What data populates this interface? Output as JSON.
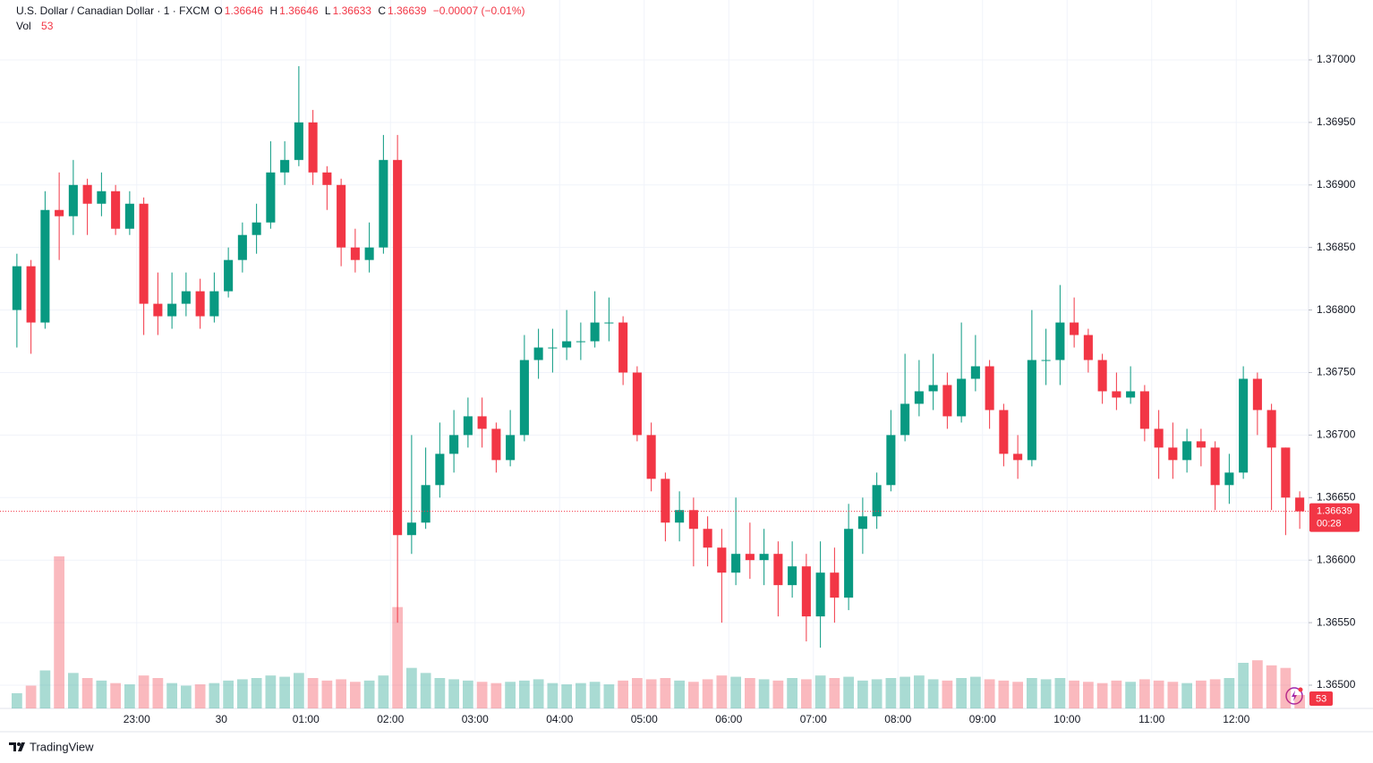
{
  "chart_data": {
    "type": "candlestick",
    "legend": {
      "title": "U.S. Dollar / Canadian Dollar · 1 · FXCM",
      "items": [
        {
          "label": "O",
          "value": "1.36646"
        },
        {
          "label": "H",
          "value": "1.36646"
        },
        {
          "label": "L",
          "value": "1.36633"
        },
        {
          "label": "C",
          "value": "1.36639"
        }
      ],
      "change": "−0.00007 (−0.01%)"
    },
    "up_color": "#089981",
    "down_color": "#f23645",
    "categories": [
      "21:30",
      "21:40",
      "21:50",
      "22:00",
      "22:10",
      "22:20",
      "22:30",
      "22:40",
      "22:50",
      "23:00",
      "23:10",
      "23:20",
      "23:30",
      "23:40",
      "23:50",
      "00:00",
      "00:10",
      "00:20",
      "00:30",
      "00:40",
      "00:50",
      "01:00",
      "01:10",
      "01:20",
      "01:30",
      "01:40",
      "01:50",
      "02:00",
      "02:10",
      "02:20",
      "02:30",
      "02:40",
      "02:50",
      "03:00",
      "03:10",
      "03:20",
      "03:30",
      "03:40",
      "03:50",
      "04:00",
      "04:10",
      "04:20",
      "04:30",
      "04:40",
      "04:50",
      "05:00",
      "05:10",
      "05:20",
      "05:30",
      "05:40",
      "05:50",
      "06:00",
      "06:10",
      "06:20",
      "06:30",
      "06:40",
      "06:50",
      "07:00",
      "07:10",
      "07:20",
      "07:30",
      "07:40",
      "07:50",
      "08:00",
      "08:10",
      "08:20",
      "08:30",
      "08:40",
      "08:50",
      "09:00",
      "09:10",
      "09:20",
      "09:30",
      "09:40",
      "09:50",
      "10:00",
      "10:10",
      "10:20",
      "10:30",
      "10:40",
      "10:50",
      "11:00",
      "11:10",
      "11:20",
      "11:30",
      "11:40",
      "11:50",
      "12:00",
      "12:10",
      "12:20",
      "12:30",
      "12:40"
    ],
    "open": [
      1.368,
      1.36835,
      1.3679,
      1.3688,
      1.36875,
      1.369,
      1.36885,
      1.36895,
      1.36865,
      1.36885,
      1.36805,
      1.36795,
      1.36805,
      1.36815,
      1.36795,
      1.36815,
      1.3684,
      1.3686,
      1.3687,
      1.3691,
      1.3692,
      1.3695,
      1.3691,
      1.369,
      1.3685,
      1.3684,
      1.3685,
      1.3692,
      1.3662,
      1.3663,
      1.3666,
      1.36685,
      1.367,
      1.36715,
      1.36705,
      1.3668,
      1.367,
      1.3676,
      1.3677,
      1.3677,
      1.36775,
      1.36775,
      1.3679,
      1.3679,
      1.3675,
      1.367,
      1.36665,
      1.3663,
      1.3664,
      1.36625,
      1.3661,
      1.3659,
      1.36605,
      1.366,
      1.36605,
      1.3658,
      1.36595,
      1.36555,
      1.3659,
      1.3657,
      1.36625,
      1.36635,
      1.3666,
      1.367,
      1.36725,
      1.36735,
      1.3674,
      1.36715,
      1.36745,
      1.36755,
      1.3672,
      1.36685,
      1.3668,
      1.3676,
      1.3676,
      1.3679,
      1.3678,
      1.3676,
      1.36735,
      1.3673,
      1.36735,
      1.36705,
      1.3669,
      1.3668,
      1.36695,
      1.3669,
      1.3666,
      1.3667,
      1.36745,
      1.3672,
      1.3669,
      1.3665
    ],
    "high": [
      1.36845,
      1.3684,
      1.36895,
      1.3691,
      1.3692,
      1.36905,
      1.3691,
      1.369,
      1.36895,
      1.3689,
      1.3683,
      1.3683,
      1.3683,
      1.36825,
      1.3683,
      1.3685,
      1.3687,
      1.36885,
      1.36935,
      1.36935,
      1.36995,
      1.3696,
      1.36915,
      1.36905,
      1.36865,
      1.3687,
      1.3694,
      1.3694,
      1.367,
      1.3669,
      1.3671,
      1.3672,
      1.3673,
      1.3673,
      1.3671,
      1.3672,
      1.3678,
      1.36785,
      1.36785,
      1.368,
      1.3679,
      1.36815,
      1.3681,
      1.36795,
      1.36755,
      1.3671,
      1.3667,
      1.36655,
      1.3665,
      1.36635,
      1.36625,
      1.3665,
      1.3663,
      1.36625,
      1.36615,
      1.36615,
      1.36605,
      1.36615,
      1.3661,
      1.36645,
      1.3665,
      1.3667,
      1.3672,
      1.36765,
      1.3676,
      1.36765,
      1.3675,
      1.3679,
      1.3678,
      1.3676,
      1.36725,
      1.367,
      1.368,
      1.36785,
      1.3682,
      1.3681,
      1.36785,
      1.36765,
      1.3675,
      1.36755,
      1.3674,
      1.3672,
      1.3671,
      1.36705,
      1.36705,
      1.36695,
      1.36685,
      1.36755,
      1.3675,
      1.36725,
      1.3669,
      1.36655
    ],
    "low": [
      1.3677,
      1.36765,
      1.36785,
      1.3684,
      1.3686,
      1.3686,
      1.36875,
      1.3686,
      1.3686,
      1.3678,
      1.3678,
      1.36785,
      1.36795,
      1.36785,
      1.3679,
      1.3681,
      1.3683,
      1.36845,
      1.36865,
      1.369,
      1.36915,
      1.369,
      1.3688,
      1.36835,
      1.3683,
      1.3683,
      1.36845,
      1.3655,
      1.36605,
      1.36625,
      1.3665,
      1.3667,
      1.3669,
      1.3669,
      1.3667,
      1.36675,
      1.36695,
      1.36745,
      1.3675,
      1.3676,
      1.3676,
      1.3677,
      1.36775,
      1.3674,
      1.36695,
      1.36655,
      1.36615,
      1.36615,
      1.36595,
      1.36595,
      1.3655,
      1.3658,
      1.36585,
      1.3658,
      1.36555,
      1.3657,
      1.36535,
      1.3653,
      1.3655,
      1.3656,
      1.36605,
      1.36625,
      1.36655,
      1.36695,
      1.36715,
      1.3672,
      1.36705,
      1.3671,
      1.36735,
      1.36705,
      1.36675,
      1.36665,
      1.36675,
      1.3674,
      1.3674,
      1.3677,
      1.3675,
      1.36725,
      1.3672,
      1.36725,
      1.36695,
      1.36665,
      1.36665,
      1.3667,
      1.36675,
      1.3664,
      1.36645,
      1.36665,
      1.367,
      1.3664,
      1.3662,
      1.36625
    ],
    "close": [
      1.36835,
      1.3679,
      1.3688,
      1.36875,
      1.369,
      1.36885,
      1.36895,
      1.36865,
      1.36885,
      1.36805,
      1.36795,
      1.36805,
      1.36815,
      1.36795,
      1.36815,
      1.3684,
      1.3686,
      1.3687,
      1.3691,
      1.3692,
      1.3695,
      1.3691,
      1.369,
      1.3685,
      1.3684,
      1.3685,
      1.3692,
      1.3662,
      1.3663,
      1.3666,
      1.36685,
      1.367,
      1.36715,
      1.36705,
      1.3668,
      1.367,
      1.3676,
      1.3677,
      1.3677,
      1.36775,
      1.36775,
      1.3679,
      1.3679,
      1.3675,
      1.367,
      1.36665,
      1.3663,
      1.3664,
      1.36625,
      1.3661,
      1.3659,
      1.36605,
      1.366,
      1.36605,
      1.3658,
      1.36595,
      1.36555,
      1.3659,
      1.3657,
      1.36625,
      1.36635,
      1.3666,
      1.367,
      1.36725,
      1.36735,
      1.3674,
      1.36715,
      1.36745,
      1.36755,
      1.3672,
      1.36685,
      1.3668,
      1.3676,
      1.3676,
      1.3679,
      1.3678,
      1.3676,
      1.36735,
      1.3673,
      1.36735,
      1.36705,
      1.3669,
      1.3668,
      1.36695,
      1.3669,
      1.3666,
      1.3667,
      1.36745,
      1.3672,
      1.3669,
      1.3665,
      1.36639
    ],
    "volume": {
      "name": "Vol",
      "values": [
        60,
        90,
        150,
        600,
        140,
        120,
        110,
        100,
        95,
        130,
        120,
        100,
        90,
        95,
        100,
        110,
        115,
        120,
        130,
        125,
        140,
        120,
        110,
        115,
        105,
        110,
        130,
        400,
        160,
        140,
        120,
        115,
        110,
        105,
        100,
        105,
        110,
        115,
        100,
        95,
        100,
        105,
        95,
        110,
        120,
        115,
        120,
        110,
        105,
        115,
        130,
        125,
        120,
        115,
        110,
        120,
        115,
        130,
        120,
        125,
        110,
        115,
        120,
        125,
        130,
        115,
        110,
        120,
        125,
        115,
        110,
        105,
        120,
        115,
        120,
        110,
        105,
        100,
        110,
        105,
        115,
        110,
        105,
        100,
        110,
        115,
        120,
        180,
        190,
        170,
        160,
        53
      ]
    },
    "volume_last_label": "Vol",
    "ylim": [
      1.364814,
      1.370479
    ],
    "yticks": [
      {
        "value": 1.365,
        "label": "1.36500"
      },
      {
        "value": 1.3655,
        "label": "1.36550"
      },
      {
        "value": 1.366,
        "label": "1.36600"
      },
      {
        "value": 1.3665,
        "label": "1.36650"
      },
      {
        "value": 1.367,
        "label": "1.36700"
      },
      {
        "value": 1.3675,
        "label": "1.36750"
      },
      {
        "value": 1.368,
        "label": "1.36800"
      },
      {
        "value": 1.3685,
        "label": "1.36850"
      },
      {
        "value": 1.369,
        "label": "1.36900"
      },
      {
        "value": 1.3695,
        "label": "1.36950"
      },
      {
        "value": 1.37,
        "label": "1.37000"
      }
    ],
    "xticks": [
      "23:00",
      {
        "value": "00:00",
        "label": "30"
      },
      "01:00",
      "02:00",
      "03:00",
      "04:00",
      "05:00",
      "06:00",
      "07:00",
      "08:00",
      "09:00",
      "10:00",
      "11:00",
      "12:00"
    ],
    "countdown": "00:28",
    "grid": true
  },
  "footer": {
    "brand": "TradingView"
  }
}
